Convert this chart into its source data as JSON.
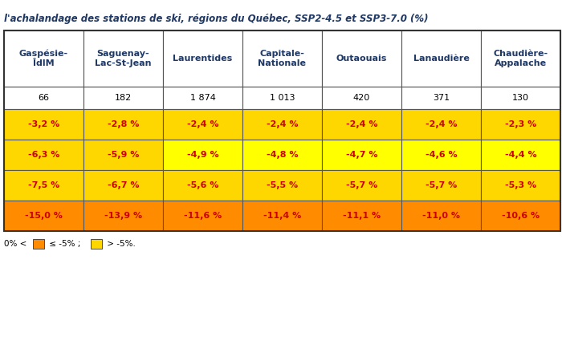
{
  "title": "l'achalandage des stations de ski, régions du Québec, SSP2-4.5 et SSP3-7.0 (%)",
  "title_color": "#1F3864",
  "columns": [
    "Gaspésie-\nÎdlM",
    "Saguenay-\nLac-St-Jean",
    "Laurentides",
    "Capitale-\nNationale",
    "Outaouais",
    "Lanaudière",
    "Chaudière-\nAppalache"
  ],
  "counts": [
    "66",
    "182",
    "1 874",
    "1 013",
    "420",
    "371",
    "130"
  ],
  "rows": [
    [
      "-3,2 %",
      "-2,8 %",
      "-2,4 %",
      "-2,4 %",
      "-2,4 %",
      "-2,4 %",
      "-2,3 %"
    ],
    [
      "-6,3 %",
      "-5,9 %",
      "-4,9 %",
      "-4,8 %",
      "-4,7 %",
      "-4,6 %",
      "-4,4 %"
    ],
    [
      "-7,5 %",
      "-6,7 %",
      "-5,6 %",
      "-5,5 %",
      "-5,7 %",
      "-5,7 %",
      "-5,3 %"
    ],
    [
      "-15,0 %",
      "-13,9 %",
      "-11,6 %",
      "-11,4 %",
      "-11,1 %",
      "-11,0 %",
      "-10,6 %"
    ]
  ],
  "row_colors": [
    [
      "#FFD700",
      "#FFD700",
      "#FFD700",
      "#FFD700",
      "#FFD700",
      "#FFD700",
      "#FFD700"
    ],
    [
      "#FFD700",
      "#FFD700",
      "#FFFF00",
      "#FFFF00",
      "#FFFF00",
      "#FFFF00",
      "#FFFF00"
    ],
    [
      "#FFD700",
      "#FFD700",
      "#FFD700",
      "#FFD700",
      "#FFD700",
      "#FFD700",
      "#FFD700"
    ],
    [
      "#FF8C00",
      "#FF8C00",
      "#FF8C00",
      "#FF8C00",
      "#FF8C00",
      "#FF8C00",
      "#FF8C00"
    ]
  ],
  "text_color": "#CC0000",
  "bg_color": "#FFFFFF",
  "border_color": "#555555",
  "orange_legend": "#FF8C00",
  "yellow_legend": "#FFD700",
  "fig_width": 7.0,
  "fig_height": 4.5,
  "dpi": 100
}
